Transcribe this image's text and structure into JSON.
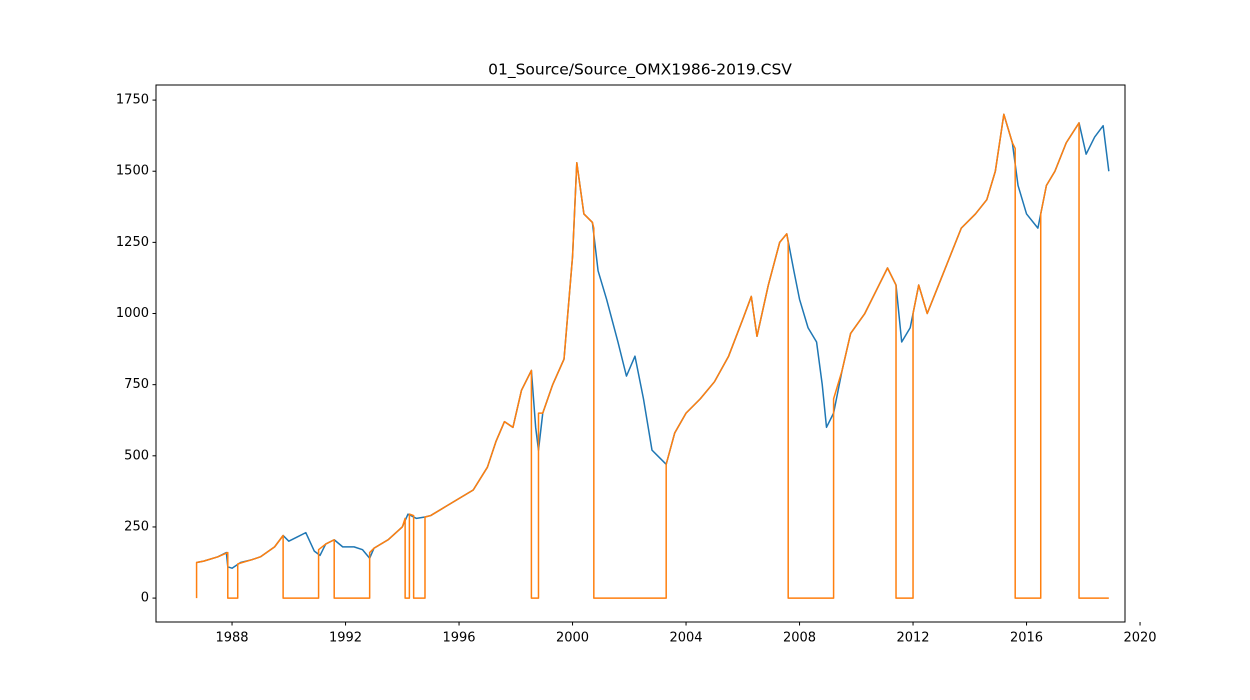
{
  "chart_data": {
    "type": "line",
    "title": "01_Source/Source_OMX1986-2019.CSV",
    "xlim": [
      1985.32,
      2019.47
    ],
    "ylim": [
      -84,
      1803
    ],
    "xticks": [
      1988,
      1992,
      1996,
      2000,
      2004,
      2008,
      2012,
      2016,
      2020
    ],
    "yticks": [
      0,
      250,
      500,
      750,
      1000,
      1250,
      1500,
      1750
    ],
    "grid": false,
    "series": [
      {
        "color": "#1f77b4",
        "x": [
          1986.75,
          1987.0,
          1987.5,
          1987.8,
          1987.85,
          1988.0,
          1988.3,
          1988.7,
          1989.0,
          1989.5,
          1989.8,
          1990.0,
          1990.3,
          1990.6,
          1990.9,
          1991.1,
          1991.3,
          1991.6,
          1991.9,
          1992.3,
          1992.6,
          1992.85,
          1993.0,
          1993.5,
          1994.0,
          1994.2,
          1994.5,
          1994.8,
          1995.0,
          1995.5,
          1996.0,
          1996.5,
          1997.0,
          1997.3,
          1997.6,
          1997.9,
          1998.2,
          1998.55,
          1998.7,
          1998.8,
          1998.95,
          1999.3,
          1999.7,
          2000.0,
          2000.15,
          2000.4,
          2000.7,
          2000.9,
          2001.2,
          2001.6,
          2001.9,
          2002.2,
          2002.5,
          2002.8,
          2003.0,
          2003.3,
          2003.6,
          2004.0,
          2004.5,
          2005.0,
          2005.5,
          2006.0,
          2006.3,
          2006.5,
          2006.9,
          2007.3,
          2007.55,
          2007.8,
          2008.0,
          2008.3,
          2008.6,
          2008.8,
          2008.95,
          2009.2,
          2009.5,
          2009.8,
          2010.3,
          2010.8,
          2011.1,
          2011.4,
          2011.6,
          2011.9,
          2012.2,
          2012.5,
          2012.9,
          2013.3,
          2013.7,
          2014.2,
          2014.6,
          2014.9,
          2015.2,
          2015.5,
          2015.7,
          2016.0,
          2016.4,
          2016.7,
          2017.0,
          2017.4,
          2017.85,
          2018.1,
          2018.4,
          2018.7,
          2018.9
        ],
        "values": [
          125,
          130,
          145,
          160,
          110,
          105,
          125,
          135,
          145,
          180,
          220,
          200,
          215,
          230,
          165,
          150,
          190,
          205,
          180,
          180,
          170,
          140,
          175,
          205,
          250,
          295,
          280,
          285,
          290,
          320,
          350,
          380,
          460,
          550,
          620,
          600,
          730,
          800,
          600,
          520,
          650,
          750,
          840,
          1200,
          1530,
          1350,
          1320,
          1150,
          1050,
          900,
          780,
          850,
          700,
          520,
          500,
          470,
          580,
          650,
          700,
          760,
          850,
          980,
          1060,
          920,
          1100,
          1250,
          1280,
          1150,
          1050,
          950,
          900,
          750,
          600,
          650,
          800,
          930,
          1000,
          1100,
          1160,
          1100,
          900,
          950,
          1100,
          1000,
          1100,
          1200,
          1300,
          1350,
          1400,
          1500,
          1700,
          1600,
          1450,
          1350,
          1300,
          1450,
          1500,
          1600,
          1670,
          1560,
          1620,
          1660,
          1500
        ]
      },
      {
        "color": "#ff7f0e",
        "x": [
          1986.75,
          1986.75,
          1987.0,
          1987.5,
          1987.85,
          1987.85,
          1988.2,
          1988.2,
          1988.7,
          1989.0,
          1989.5,
          1989.8,
          1989.8,
          1991.05,
          1991.05,
          1991.3,
          1991.6,
          1991.6,
          1992.85,
          1992.85,
          1993.0,
          1993.5,
          1994.0,
          1994.1,
          1994.1,
          1994.25,
          1994.25,
          1994.4,
          1994.4,
          1994.8,
          1994.8,
          1995.0,
          1995.5,
          1996.0,
          1996.5,
          1997.0,
          1997.3,
          1997.6,
          1997.9,
          1998.2,
          1998.55,
          1998.55,
          1998.8,
          1998.8,
          1998.95,
          1999.3,
          1999.7,
          2000.0,
          2000.15,
          2000.4,
          2000.7,
          2000.75,
          2000.75,
          2003.3,
          2003.3,
          2003.6,
          2004.0,
          2004.5,
          2005.0,
          2005.5,
          2006.0,
          2006.3,
          2006.5,
          2006.9,
          2007.3,
          2007.55,
          2007.6,
          2007.6,
          2009.2,
          2009.2,
          2009.5,
          2009.8,
          2010.3,
          2010.8,
          2011.1,
          2011.4,
          2011.4,
          2012.0,
          2012.0,
          2012.2,
          2012.5,
          2012.9,
          2013.3,
          2013.7,
          2014.2,
          2014.6,
          2014.9,
          2015.2,
          2015.5,
          2015.6,
          2015.6,
          2016.5,
          2016.5,
          2016.7,
          2017.0,
          2017.4,
          2017.85,
          2017.85,
          2018.9
        ],
        "values": [
          0,
          125,
          130,
          145,
          160,
          0,
          0,
          120,
          135,
          145,
          180,
          220,
          0,
          0,
          170,
          190,
          205,
          0,
          0,
          160,
          175,
          205,
          250,
          280,
          0,
          0,
          295,
          290,
          0,
          0,
          285,
          290,
          320,
          350,
          380,
          460,
          550,
          620,
          600,
          730,
          800,
          0,
          0,
          650,
          650,
          750,
          840,
          1200,
          1530,
          1350,
          1320,
          1300,
          0,
          0,
          470,
          580,
          650,
          700,
          760,
          850,
          980,
          1060,
          920,
          1100,
          1250,
          1280,
          1250,
          0,
          0,
          700,
          800,
          930,
          1000,
          1100,
          1160,
          1100,
          0,
          0,
          1000,
          1100,
          1000,
          1100,
          1200,
          1300,
          1350,
          1400,
          1500,
          1700,
          1600,
          1580,
          0,
          0,
          1350,
          1450,
          1500,
          1600,
          1670,
          0,
          0
        ]
      }
    ]
  }
}
